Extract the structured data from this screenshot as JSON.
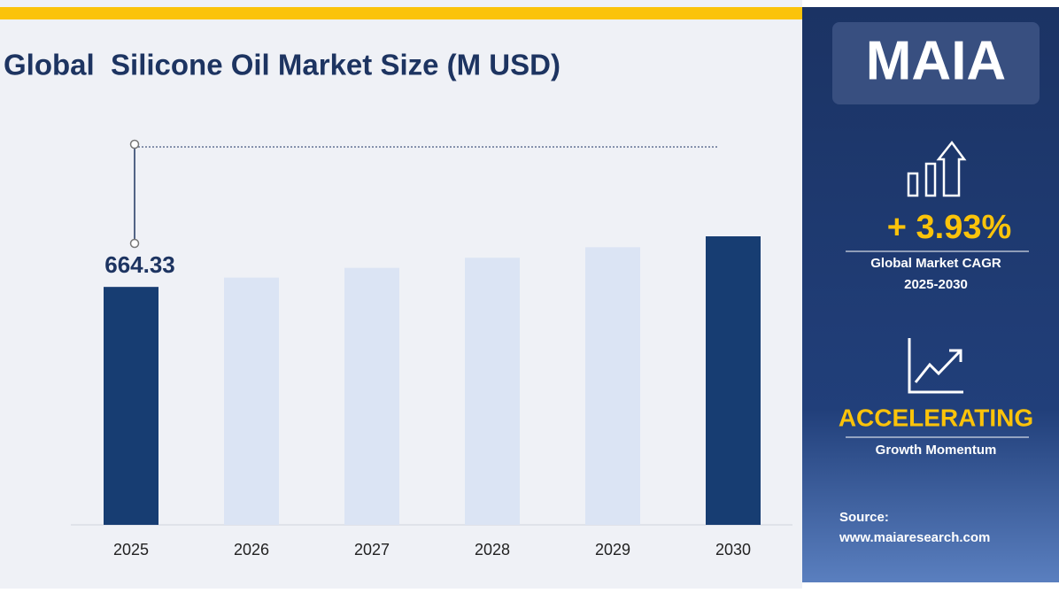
{
  "chart_data": {
    "type": "bar",
    "title": "Global  Silicone Oil Market Size (M USD)",
    "categories": [
      "2025",
      "2026",
      "2027",
      "2028",
      "2029",
      "2030"
    ],
    "values": [
      664.33,
      690.4,
      717.6,
      745.8,
      775.1,
      805.6
    ],
    "value_labels": [
      "664.33",
      null,
      null,
      null,
      null,
      null
    ],
    "colors": [
      "#173d72",
      "#dbe4f4",
      "#dbe4f4",
      "#dbe4f4",
      "#dbe4f4",
      "#173d72"
    ]
  },
  "sidebar": {
    "logo": "MAIA",
    "cagr": "+ 3.93%",
    "cagr_label": "Global Market CAGR",
    "cagr_period": "2025-2030",
    "trend": "ACCELERATING",
    "trend_label": "Growth Momentum",
    "source_label": "Source:",
    "source_url": "www.maiaresearch.com"
  }
}
